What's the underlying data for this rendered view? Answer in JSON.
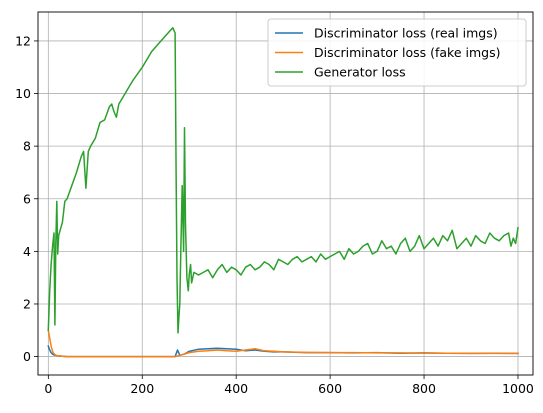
{
  "chart_data": {
    "type": "line",
    "title": "",
    "xlabel": "",
    "ylabel": "",
    "xlim": [
      -22,
      1032
    ],
    "ylim": [
      -0.7,
      13.1
    ],
    "x_ticks": [
      0,
      200,
      400,
      600,
      800,
      1000
    ],
    "y_ticks": [
      0,
      2,
      4,
      6,
      8,
      10,
      12
    ],
    "grid": true,
    "legend_position": "top-right",
    "series": [
      {
        "name": "Discriminator loss (real imgs)",
        "color": "#1f77b4",
        "x": [
          0,
          3,
          6,
          10,
          15,
          20,
          30,
          40,
          60,
          100,
          150,
          200,
          250,
          270,
          275,
          280,
          290,
          300,
          320,
          340,
          360,
          380,
          400,
          420,
          440,
          460,
          480,
          500,
          550,
          600,
          650,
          700,
          750,
          800,
          850,
          900,
          950,
          1000
        ],
        "y": [
          0.4,
          0.25,
          0.15,
          0.08,
          0.05,
          0.03,
          0.01,
          0.0,
          0.0,
          0.0,
          0.0,
          0.0,
          0.0,
          0.0,
          0.25,
          0.05,
          0.1,
          0.2,
          0.28,
          0.3,
          0.32,
          0.3,
          0.28,
          0.22,
          0.25,
          0.2,
          0.18,
          0.18,
          0.15,
          0.15,
          0.14,
          0.15,
          0.13,
          0.14,
          0.13,
          0.12,
          0.13,
          0.12
        ]
      },
      {
        "name": "Discriminator loss (fake imgs)",
        "color": "#ff7f0e",
        "x": [
          0,
          3,
          6,
          10,
          15,
          20,
          30,
          40,
          60,
          100,
          150,
          200,
          250,
          270,
          280,
          290,
          300,
          320,
          340,
          360,
          380,
          400,
          420,
          440,
          460,
          480,
          500,
          550,
          600,
          650,
          700,
          750,
          800,
          850,
          900,
          950,
          1000
        ],
        "y": [
          1.0,
          0.7,
          0.4,
          0.15,
          0.06,
          0.03,
          0.01,
          0.0,
          0.0,
          0.0,
          0.0,
          0.0,
          0.0,
          0.0,
          0.05,
          0.1,
          0.15,
          0.2,
          0.22,
          0.25,
          0.22,
          0.2,
          0.25,
          0.3,
          0.22,
          0.2,
          0.18,
          0.16,
          0.15,
          0.15,
          0.14,
          0.14,
          0.13,
          0.13,
          0.12,
          0.12,
          0.12
        ]
      },
      {
        "name": "Generator loss",
        "color": "#2ca02c",
        "x": [
          0,
          3,
          6,
          9,
          12,
          14,
          16,
          18,
          20,
          22,
          25,
          30,
          35,
          40,
          50,
          60,
          70,
          75,
          80,
          85,
          90,
          100,
          110,
          120,
          130,
          135,
          140,
          145,
          150,
          160,
          180,
          200,
          220,
          240,
          260,
          265,
          270,
          272,
          274,
          276,
          278,
          280,
          282,
          285,
          288,
          290,
          292,
          295,
          298,
          300,
          303,
          305,
          310,
          320,
          330,
          340,
          350,
          360,
          370,
          380,
          390,
          400,
          410,
          420,
          430,
          440,
          450,
          460,
          470,
          480,
          490,
          500,
          510,
          520,
          530,
          540,
          550,
          560,
          570,
          580,
          590,
          600,
          610,
          620,
          630,
          640,
          650,
          660,
          670,
          680,
          690,
          700,
          710,
          720,
          730,
          740,
          750,
          760,
          770,
          780,
          790,
          800,
          810,
          820,
          830,
          840,
          850,
          860,
          870,
          880,
          890,
          900,
          910,
          920,
          930,
          940,
          950,
          960,
          970,
          980,
          985,
          990,
          995,
          1000
        ],
        "y": [
          1.0,
          2.5,
          3.5,
          4.2,
          4.7,
          1.2,
          4.3,
          5.9,
          3.9,
          4.6,
          4.8,
          5.1,
          5.9,
          6.0,
          6.5,
          7.0,
          7.6,
          7.8,
          6.4,
          7.8,
          8.0,
          8.3,
          8.9,
          9.0,
          9.5,
          9.6,
          9.3,
          9.1,
          9.6,
          9.9,
          10.5,
          11.0,
          11.6,
          12.0,
          12.4,
          12.5,
          12.3,
          7.0,
          3.0,
          0.9,
          1.5,
          2.0,
          4.0,
          6.5,
          4.0,
          8.7,
          5.0,
          3.0,
          2.5,
          3.1,
          3.5,
          2.8,
          3.2,
          3.1,
          3.2,
          3.3,
          3.0,
          3.3,
          3.5,
          3.2,
          3.4,
          3.3,
          3.1,
          3.4,
          3.5,
          3.3,
          3.4,
          3.6,
          3.5,
          3.3,
          3.7,
          3.6,
          3.5,
          3.7,
          3.8,
          3.6,
          3.7,
          3.8,
          3.6,
          3.9,
          3.7,
          3.8,
          3.9,
          4.0,
          3.7,
          4.1,
          3.9,
          4.0,
          4.2,
          4.3,
          3.9,
          4.0,
          4.4,
          4.1,
          4.2,
          3.9,
          4.3,
          4.5,
          4.0,
          4.2,
          4.6,
          4.1,
          4.3,
          4.5,
          4.2,
          4.6,
          4.4,
          4.8,
          4.1,
          4.3,
          4.5,
          4.2,
          4.6,
          4.4,
          4.3,
          4.7,
          4.5,
          4.4,
          4.6,
          4.7,
          4.2,
          4.5,
          4.3,
          4.9
        ]
      }
    ]
  }
}
